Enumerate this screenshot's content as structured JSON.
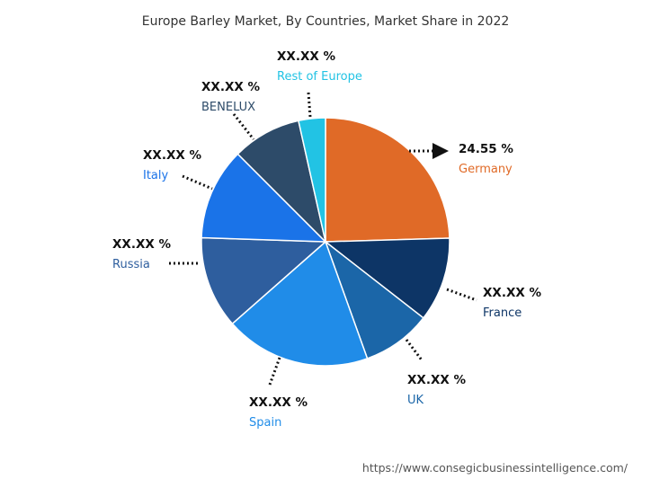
{
  "title": "Europe Barley Market, By Countries, Market Share in 2022",
  "source": "https://www.consegicbusinessintelligence.com/",
  "chart_data": {
    "type": "pie",
    "title": "Europe Barley Market, By Countries, Market Share in 2022",
    "slices": [
      {
        "name": "Germany",
        "value": 24.55,
        "label": "24.55 %",
        "color": "#E06A27",
        "name_color": "#E06A27"
      },
      {
        "name": "France",
        "value": 11.0,
        "label": "XX.XX %",
        "color": "#0D3566",
        "name_color": "#0D3566"
      },
      {
        "name": "UK",
        "value": 9.0,
        "label": "XX.XX %",
        "color": "#1B66A8",
        "name_color": "#1B66A8"
      },
      {
        "name": "Spain",
        "value": 19.0,
        "label": "XX.XX %",
        "color": "#208CE8",
        "name_color": "#208CE8"
      },
      {
        "name": "Russia",
        "value": 12.0,
        "label": "XX.XX %",
        "color": "#2E5E9E",
        "name_color": "#2E5E9E"
      },
      {
        "name": "Italy",
        "value": 12.0,
        "label": "XX.XX %",
        "color": "#1A73E8",
        "name_color": "#1A73E8"
      },
      {
        "name": "BENELUX",
        "value": 9.0,
        "label": "XX.XX %",
        "color": "#2D4B69",
        "name_color": "#2D4B69"
      },
      {
        "name": "Rest of Europe",
        "value": 3.5,
        "label": "XX.XX %",
        "color": "#22C3E4",
        "name_color": "#22C3E4"
      }
    ]
  }
}
